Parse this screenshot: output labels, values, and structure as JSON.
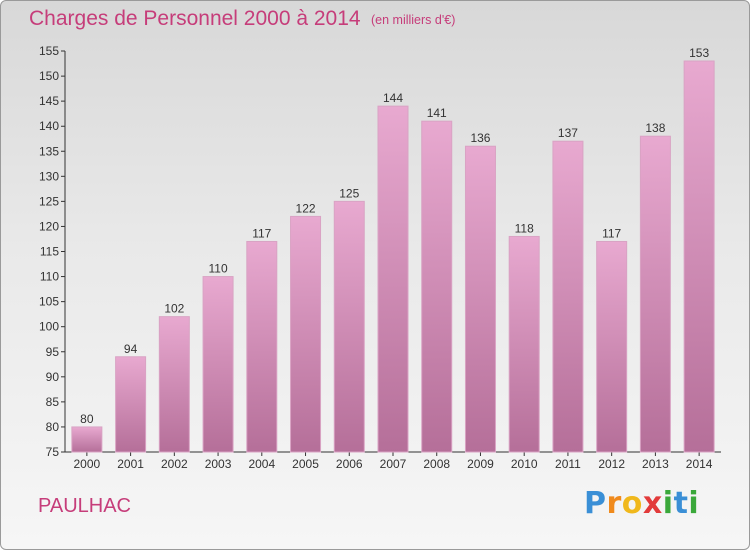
{
  "title": "Charges de Personnel 2000 à 2014",
  "subtitle": "(en milliers d'€)",
  "commune": "PAULHAC",
  "logo": {
    "name": "Proxiti",
    "letters": [
      "P",
      "r",
      "o",
      "x",
      "i",
      "t",
      "i"
    ],
    "colors": [
      "#3a8fd6",
      "#f08a1c",
      "#f0b81c",
      "#e23a3a",
      "#3aa83a",
      "#3a8fd6",
      "#3aa83a"
    ]
  },
  "colors": {
    "accent": "#c63d7a",
    "bar_top": "#e8a9d0",
    "bar_bottom": "#b56f99"
  },
  "chart_data": {
    "type": "bar",
    "categories": [
      "2000",
      "2001",
      "2002",
      "2003",
      "2004",
      "2005",
      "2006",
      "2007",
      "2008",
      "2009",
      "2010",
      "2011",
      "2012",
      "2013",
      "2014"
    ],
    "values": [
      80,
      94,
      102,
      110,
      117,
      122,
      125,
      144,
      141,
      136,
      118,
      137,
      117,
      138,
      153
    ],
    "data_labels": [
      "80",
      "94",
      "102",
      "110",
      "117",
      "122",
      "125",
      "144",
      "141",
      "136",
      "118",
      "137",
      "117",
      "138",
      "153"
    ],
    "ylim": [
      75,
      155
    ],
    "yticks": [
      "75",
      "80",
      "85",
      "90",
      "95",
      "100",
      "105",
      "110",
      "115",
      "120",
      "125",
      "130",
      "135",
      "140",
      "145",
      "150",
      "155"
    ],
    "grid": false,
    "legend": "none"
  }
}
